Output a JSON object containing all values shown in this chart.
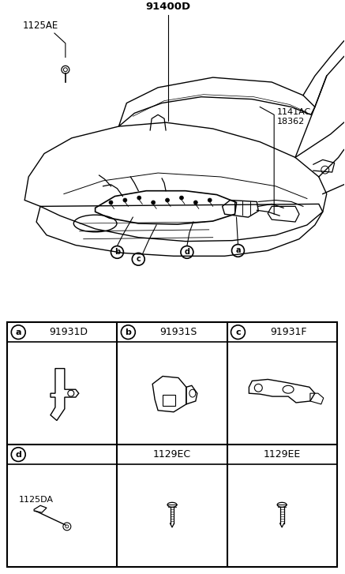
{
  "bg_color": "#ffffff",
  "line_color": "#000000",
  "fig_width": 4.37,
  "fig_height": 7.27,
  "dpi": 100,
  "title_labels": {
    "main_part": "91400D",
    "screw1": "1125AE",
    "connector1": "1141AC",
    "connector2": "18362"
  },
  "callout_labels": {
    "a": "91931D",
    "b": "91931S",
    "c": "91931F",
    "d": "1125DA"
  },
  "part_labels": {
    "1129EC": "1129EC",
    "1129EE": "1129EE"
  }
}
